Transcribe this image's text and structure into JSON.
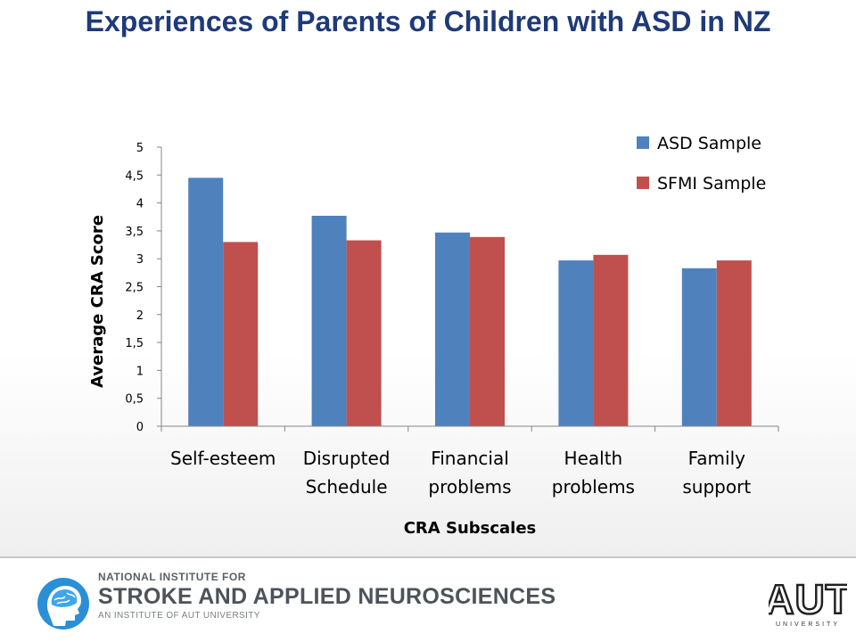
{
  "slide": {
    "title": "Experiences of Parents of Children with ASD in NZ"
  },
  "colors": {
    "title": "#1f3a78",
    "asd": "#4f81bd",
    "sfmi": "#c0504d",
    "axis": "#868686",
    "text": "#000000"
  },
  "chart_data": {
    "type": "bar",
    "categories": [
      "Self-esteem",
      "Disrupted Schedule",
      "Financial problems",
      "Health problems",
      "Family support"
    ],
    "category_lines": [
      [
        "Self-esteem"
      ],
      [
        "Disrupted",
        "Schedule"
      ],
      [
        "Financial",
        "problems"
      ],
      [
        "Health",
        "problems"
      ],
      [
        "Family",
        "support"
      ]
    ],
    "series": [
      {
        "name": "ASD Sample",
        "values": [
          4.45,
          3.77,
          3.47,
          2.97,
          2.83
        ]
      },
      {
        "name": "SFMI Sample",
        "values": [
          3.3,
          3.33,
          3.39,
          3.07,
          2.97
        ]
      }
    ],
    "title": "",
    "xlabel": "CRA Subscales",
    "ylabel": "Average CRA  Score",
    "ylim": [
      0,
      5
    ],
    "yticks": [
      "0",
      "0,5",
      "1",
      "1,5",
      "2",
      "2,5",
      "3",
      "3,5",
      "4",
      "4,5",
      "5"
    ],
    "grid": false,
    "legend_position": "top-right"
  },
  "footer": {
    "institute_line1": "NATIONAL INSTITUTE FOR",
    "institute_line2": "STROKE AND APPLIED NEUROSCIENCES",
    "institute_line3": "AN INSTITUTE OF AUT UNIVERSITY",
    "aut_logo": "AUT",
    "aut_sub": "UNIVERSITY",
    "brain_logo_icon": "head-brain-icon"
  }
}
